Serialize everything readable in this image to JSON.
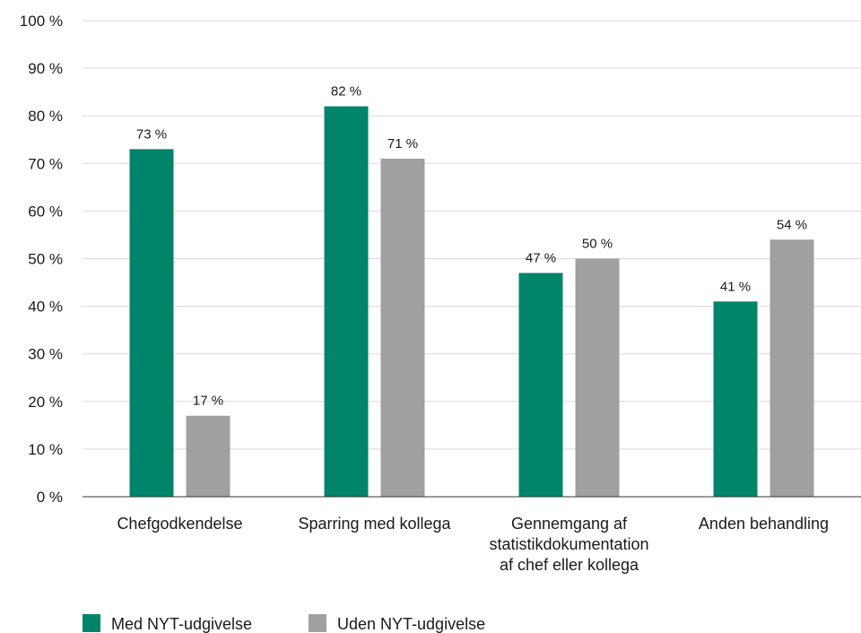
{
  "chart_data": {
    "type": "bar",
    "categories": [
      [
        "Chefgodkendelse"
      ],
      [
        "Sparring med kollega"
      ],
      [
        "Gennemgang af",
        "statistikdokumentation",
        "af chef eller kollega"
      ],
      [
        "Anden behandling"
      ]
    ],
    "series": [
      {
        "name": "Med NYT-udgivelse",
        "color": "#00856a",
        "values": [
          73,
          82,
          47,
          41
        ],
        "labels": [
          "73 %",
          "82 %",
          "47 %",
          "41 %"
        ]
      },
      {
        "name": "Uden NYT-udgivelse",
        "color": "#a0a0a0",
        "values": [
          17,
          71,
          50,
          54
        ],
        "labels": [
          "17 %",
          "71 %",
          "50 %",
          "54 %"
        ]
      }
    ],
    "ylim": [
      0,
      100
    ],
    "yticks": [
      0,
      10,
      20,
      30,
      40,
      50,
      60,
      70,
      80,
      90,
      100
    ],
    "ytick_labels": [
      "0 %",
      "10 %",
      "20 %",
      "30 %",
      "40 %",
      "50 %",
      "60 %",
      "70 %",
      "80 %",
      "90 %",
      "100 %"
    ],
    "grid": true,
    "gridline_color": "#d9d9d9",
    "legend_position": "bottom-left"
  }
}
